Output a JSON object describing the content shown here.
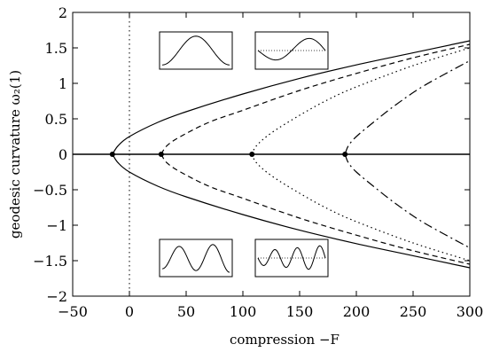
{
  "chart_data": {
    "type": "line",
    "xlabel": "compression −F",
    "ylabel": "geodesic curvature  ω₂(1)",
    "xlim": [
      -50,
      300
    ],
    "ylim": [
      -2,
      2
    ],
    "x_ticks": [
      -50,
      0,
      50,
      100,
      150,
      200,
      250,
      300
    ],
    "x_tick_labels": [
      "−50",
      "0",
      "50",
      "100",
      "150",
      "200",
      "250",
      "300"
    ],
    "y_ticks": [
      -2,
      -1.5,
      -1,
      -0.5,
      0,
      0.5,
      1,
      1.5,
      2
    ],
    "y_tick_labels": [
      "−2",
      "−1.5",
      "−1",
      "−0.5",
      "0",
      "0.5",
      "1",
      "1.5",
      "2"
    ],
    "grid": false,
    "legend": "none",
    "reference_lines": [
      {
        "orientation": "vertical",
        "x": 0,
        "style": "dotted"
      },
      {
        "orientation": "horizontal",
        "y": 0,
        "style": "solid"
      }
    ],
    "series": [
      {
        "style": "solid",
        "bifurcation_x": -15,
        "upper": {
          "x": [
            -15,
            -10,
            0,
            25,
            50,
            100,
            150,
            200,
            250,
            300
          ],
          "y": [
            0,
            0.12,
            0.25,
            0.45,
            0.6,
            0.85,
            1.07,
            1.26,
            1.43,
            1.6
          ]
        },
        "lower": {
          "x": [
            -15,
            -10,
            0,
            25,
            50,
            100,
            150,
            200,
            250,
            300
          ],
          "y": [
            0,
            -0.12,
            -0.25,
            -0.45,
            -0.6,
            -0.85,
            -1.07,
            -1.26,
            -1.43,
            -1.6
          ]
        }
      },
      {
        "style": "dashed",
        "bifurcation_x": 28,
        "upper": {
          "x": [
            28,
            33,
            45,
            70,
            100,
            150,
            200,
            250,
            300
          ],
          "y": [
            0,
            0.12,
            0.25,
            0.45,
            0.62,
            0.9,
            1.14,
            1.36,
            1.55
          ]
        },
        "lower": {
          "x": [
            28,
            33,
            45,
            70,
            100,
            150,
            200,
            250,
            300
          ],
          "y": [
            0,
            -0.12,
            -0.25,
            -0.45,
            -0.62,
            -0.9,
            -1.14,
            -1.36,
            -1.55
          ]
        }
      },
      {
        "style": "dotted",
        "bifurcation_x": 108,
        "upper": {
          "x": [
            108,
            112,
            125,
            150,
            175,
            200,
            250,
            300
          ],
          "y": [
            0,
            0.12,
            0.3,
            0.55,
            0.77,
            0.95,
            1.25,
            1.5
          ]
        },
        "lower": {
          "x": [
            108,
            112,
            125,
            150,
            175,
            200,
            250,
            300
          ],
          "y": [
            0,
            -0.12,
            -0.3,
            -0.55,
            -0.77,
            -0.95,
            -1.25,
            -1.5
          ]
        }
      },
      {
        "style": "dash-dot",
        "bifurcation_x": 190,
        "upper": {
          "x": [
            190,
            193,
            200,
            215,
            235,
            260,
            300
          ],
          "y": [
            0,
            0.12,
            0.25,
            0.45,
            0.7,
            0.97,
            1.32
          ]
        },
        "lower": {
          "x": [
            190,
            193,
            200,
            215,
            235,
            260,
            300
          ],
          "y": [
            0,
            -0.12,
            -0.25,
            -0.45,
            -0.7,
            -0.97,
            -1.32
          ]
        }
      }
    ],
    "bifurcation_points": [
      [
        -15,
        0
      ],
      [
        28,
        0
      ],
      [
        108,
        0
      ],
      [
        190,
        0
      ]
    ],
    "insets": [
      {
        "position": "top-left",
        "shape": "single-bump"
      },
      {
        "position": "top-right",
        "shape": "dip-and-bump"
      },
      {
        "position": "bottom-left",
        "shape": "two-bumps"
      },
      {
        "position": "bottom-right",
        "shape": "three-bumps"
      }
    ]
  }
}
